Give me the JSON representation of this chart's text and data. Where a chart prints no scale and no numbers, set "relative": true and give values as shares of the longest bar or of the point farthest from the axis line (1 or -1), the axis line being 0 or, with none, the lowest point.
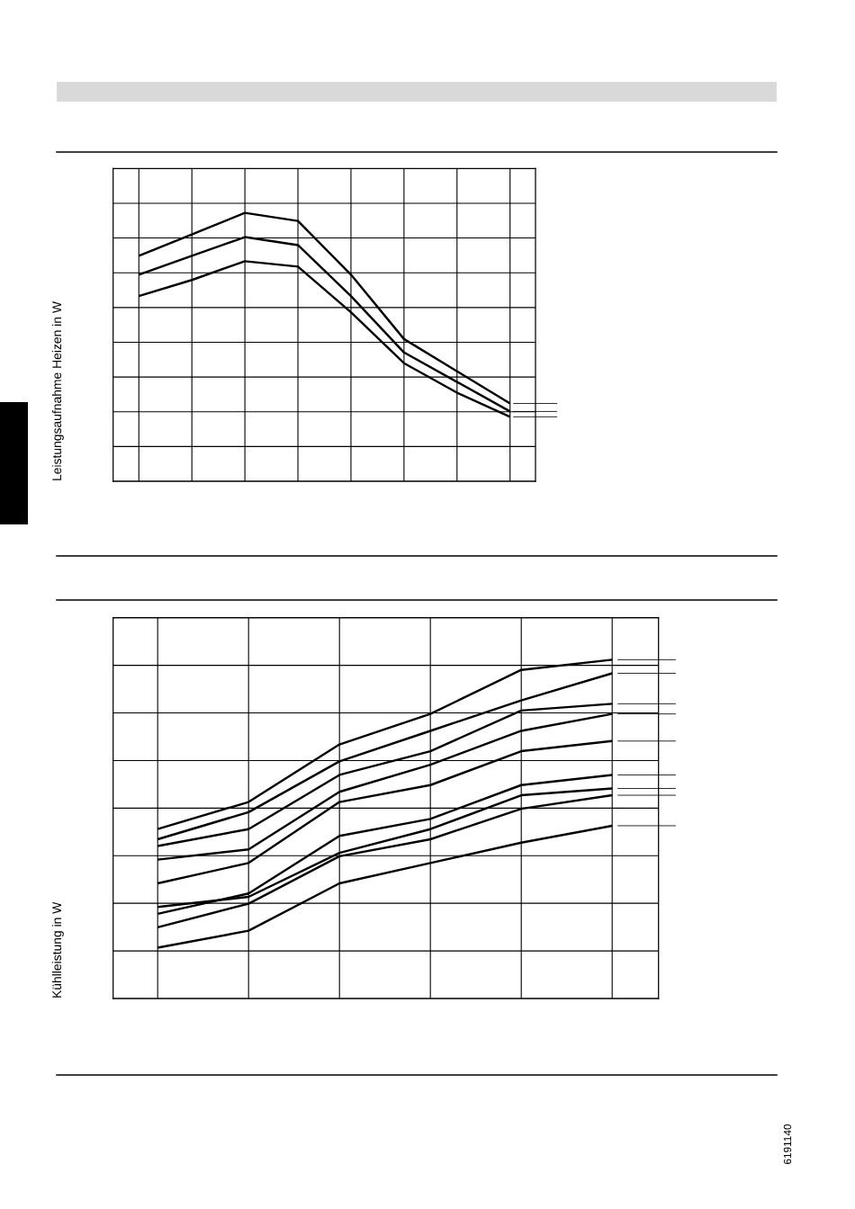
{
  "chart_data": [
    {
      "type": "line",
      "relative": true,
      "ylabel": "Leistungsaufnahme Heizen in W",
      "grid": true,
      "categories": [
        null,
        null,
        null,
        null,
        null,
        null,
        null,
        null
      ],
      "series": [
        {
          "color": "#000000",
          "values": [
            0.84,
            0.92,
            1.0,
            0.97,
            0.77,
            0.53,
            0.41,
            0.29
          ]
        },
        {
          "color": "#000000",
          "values": [
            0.77,
            0.84,
            0.91,
            0.88,
            0.69,
            0.48,
            0.37,
            0.26
          ]
        },
        {
          "color": "#000000",
          "values": [
            0.69,
            0.75,
            0.82,
            0.8,
            0.63,
            0.44,
            0.33,
            0.24
          ]
        }
      ]
    },
    {
      "type": "line",
      "relative": true,
      "ylabel": "Kühlleistung in W",
      "grid": true,
      "categories": [
        null,
        null,
        null,
        null,
        null,
        null
      ],
      "series": [
        {
          "color": "#000000",
          "values": [
            0.5,
            0.58,
            0.75,
            0.84,
            0.97,
            1.0
          ]
        },
        {
          "color": "#000000",
          "values": [
            0.47,
            0.55,
            0.7,
            0.79,
            0.88,
            0.96
          ]
        },
        {
          "color": "#000000",
          "values": [
            0.45,
            0.5,
            0.66,
            0.73,
            0.85,
            0.87
          ]
        },
        {
          "color": "#000000",
          "values": [
            0.41,
            0.44,
            0.61,
            0.69,
            0.79,
            0.84
          ]
        },
        {
          "color": "#000000",
          "values": [
            0.34,
            0.4,
            0.58,
            0.63,
            0.73,
            0.76
          ]
        },
        {
          "color": "#000000",
          "values": [
            0.25,
            0.31,
            0.48,
            0.53,
            0.63,
            0.66
          ]
        },
        {
          "color": "#000000",
          "values": [
            0.27,
            0.3,
            0.43,
            0.5,
            0.6,
            0.62
          ]
        },
        {
          "color": "#000000",
          "values": [
            0.21,
            0.28,
            0.42,
            0.47,
            0.56,
            0.6
          ]
        },
        {
          "color": "#000000",
          "values": [
            0.15,
            0.2,
            0.34,
            0.4,
            0.46,
            0.51
          ]
        }
      ],
      "annotations": [
        "6191140"
      ]
    }
  ]
}
